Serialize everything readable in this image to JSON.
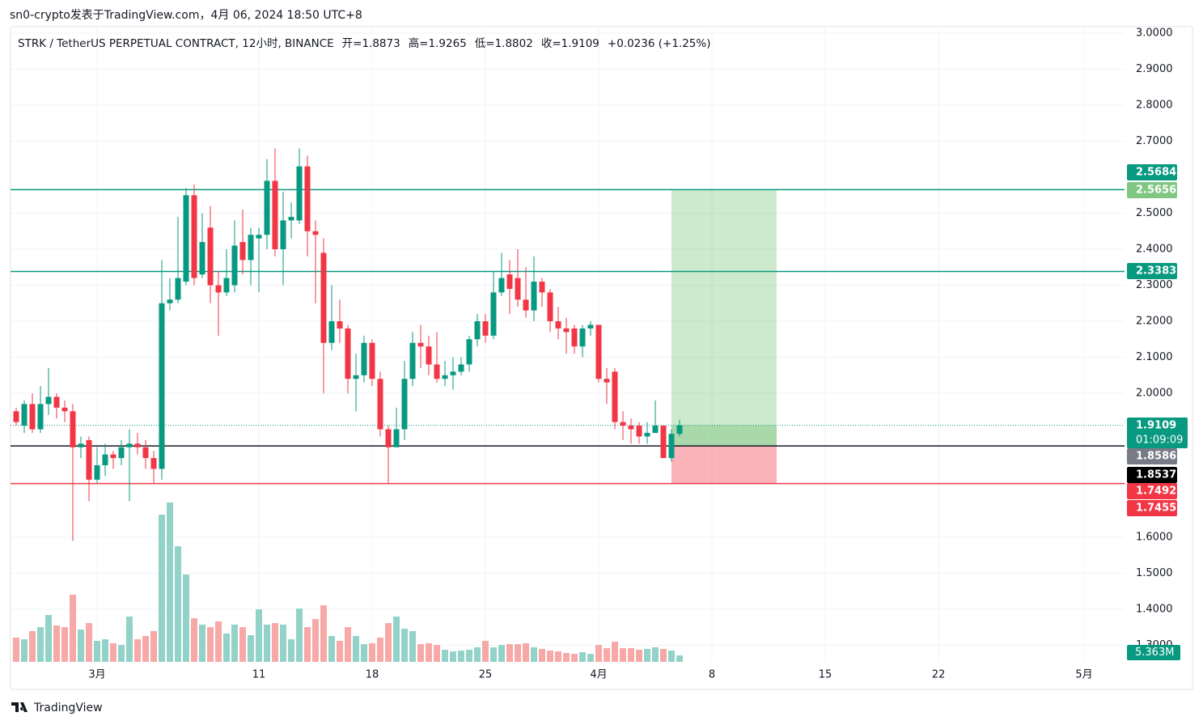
{
  "header": "sn0-crypto发表于TradingView.com，4月 06, 2024 18:50 UTC+8",
  "footer": "TradingView",
  "chart_data": {
    "type": "candlestick",
    "title": "STRK / TetherUS PERPETUAL CONTRACT, 12小时, BINANCE",
    "legend_values": [
      "开=1.8873",
      "高=1.9265",
      "低=1.8802",
      "收=1.9109",
      "+0.0236 (+1.25%)"
    ],
    "open": [
      1.95,
      1.91,
      1.97,
      1.9,
      1.97,
      1.99,
      1.96,
      1.95,
      1.85,
      1.87,
      1.76,
      1.8,
      1.83,
      1.82,
      1.85,
      1.86,
      1.85,
      1.82,
      1.79,
      2.25,
      2.26,
      2.31,
      2.55,
      2.33,
      2.46,
      2.3,
      2.28,
      2.3,
      2.42,
      2.37,
      2.43,
      2.44,
      2.59,
      2.4,
      2.48,
      2.48,
      2.63,
      2.45,
      2.39,
      2.14,
      2.2,
      2.18,
      2.04,
      2.05,
      2.14,
      2.04,
      1.9,
      1.85,
      1.9,
      2.04,
      2.14,
      2.13,
      2.08,
      2.04,
      2.05,
      2.06,
      2.08,
      2.15,
      2.2,
      2.16,
      2.28,
      2.33,
      2.32,
      2.26,
      2.23,
      2.31,
      2.28,
      2.2,
      2.18,
      2.18,
      2.13,
      2.18,
      2.19,
      2.04,
      2.06,
      1.92,
      1.91,
      1.91,
      1.88,
      1.89,
      1.91,
      1.82,
      1.8873
    ],
    "high": [
      1.96,
      1.98,
      2.0,
      2.02,
      2.07,
      2.0,
      1.98,
      1.97,
      1.88,
      1.88,
      1.85,
      1.86,
      1.84,
      1.87,
      1.9,
      1.89,
      1.87,
      1.84,
      2.37,
      2.32,
      2.49,
      2.57,
      2.58,
      2.5,
      2.52,
      2.34,
      2.4,
      2.48,
      2.51,
      2.46,
      2.46,
      2.65,
      2.68,
      2.56,
      2.53,
      2.68,
      2.66,
      2.48,
      2.43,
      2.3,
      2.26,
      2.19,
      2.11,
      2.16,
      2.15,
      2.06,
      1.91,
      1.96,
      2.09,
      2.17,
      2.19,
      2.16,
      2.17,
      2.09,
      2.1,
      2.1,
      2.16,
      2.22,
      2.22,
      2.34,
      2.39,
      2.37,
      2.4,
      2.35,
      2.38,
      2.32,
      2.29,
      2.24,
      2.21,
      2.19,
      2.19,
      2.2,
      2.19,
      2.07,
      2.07,
      1.95,
      1.93,
      1.92,
      1.92,
      1.98,
      1.91,
      1.9,
      1.9265
    ],
    "low": [
      1.91,
      1.89,
      1.89,
      1.89,
      1.94,
      1.93,
      1.92,
      1.59,
      1.82,
      1.7,
      1.75,
      1.77,
      1.79,
      1.8,
      1.7,
      1.83,
      1.79,
      1.75,
      1.76,
      2.23,
      2.25,
      2.3,
      2.3,
      2.32,
      2.25,
      2.16,
      2.27,
      2.28,
      2.33,
      2.3,
      2.28,
      2.4,
      2.38,
      2.3,
      2.43,
      2.47,
      2.38,
      2.25,
      2.0,
      2.12,
      2.14,
      2.0,
      1.95,
      2.03,
      2.02,
      1.88,
      1.75,
      1.85,
      1.87,
      2.02,
      2.07,
      2.05,
      2.03,
      2.02,
      2.01,
      2.05,
      2.06,
      2.13,
      2.14,
      2.15,
      2.27,
      2.22,
      2.24,
      2.21,
      2.2,
      2.24,
      2.17,
      2.15,
      2.11,
      2.11,
      2.1,
      2.16,
      2.03,
      1.97,
      1.9,
      1.87,
      1.86,
      1.86,
      1.86,
      1.89,
      1.82,
      1.81,
      1.8802
    ],
    "close": [
      1.92,
      1.97,
      1.9,
      1.97,
      1.99,
      1.96,
      1.95,
      1.85,
      1.86,
      1.76,
      1.8,
      1.83,
      1.82,
      1.85,
      1.86,
      1.85,
      1.82,
      1.79,
      2.25,
      2.26,
      2.32,
      2.55,
      2.32,
      2.42,
      2.3,
      2.28,
      2.32,
      2.41,
      2.37,
      2.44,
      2.44,
      2.59,
      2.4,
      2.48,
      2.49,
      2.63,
      2.45,
      2.44,
      2.14,
      2.2,
      2.18,
      2.04,
      2.05,
      2.14,
      2.04,
      1.9,
      1.85,
      1.9,
      2.04,
      2.14,
      2.13,
      2.08,
      2.04,
      2.05,
      2.06,
      2.08,
      2.15,
      2.2,
      2.16,
      2.28,
      2.32,
      2.29,
      2.26,
      2.23,
      2.31,
      2.28,
      2.2,
      2.18,
      2.17,
      2.13,
      2.18,
      2.19,
      2.04,
      2.03,
      1.92,
      1.91,
      1.9,
      1.88,
      1.89,
      1.91,
      1.82,
      1.8873,
      1.9109
    ],
    "volume": [
      20.2,
      18.8,
      25.6,
      28.9,
      39.0,
      30.3,
      28.9,
      55.9,
      26.9,
      32.3,
      17.5,
      18.8,
      15.5,
      14.1,
      37.7,
      18.8,
      21.5,
      25.6,
      122.5,
      132.6,
      96.2,
      72.7,
      36.3,
      31.0,
      28.9,
      33.7,
      23.6,
      31.0,
      28.9,
      22.2,
      43.7,
      31.0,
      32.3,
      31.0,
      18.8,
      44.4,
      28.9,
      35.7,
      47.1,
      21.5,
      17.5,
      28.9,
      21.5,
      14.8,
      15.5,
      20.2,
      32.3,
      37.7,
      27.6,
      25.6,
      14.8,
      15.5,
      14.1,
      10.1,
      8.7,
      9.4,
      10.1,
      12.1,
      17.5,
      12.1,
      14.1,
      14.8,
      14.8,
      15.5,
      12.1,
      10.8,
      9.4,
      8.7,
      7.4,
      6.7,
      8.1,
      6.7,
      14.1,
      11.4,
      16.8,
      11.4,
      11.4,
      10.1,
      10.8,
      12.1,
      10.8,
      9.4,
      5.363
    ],
    "volume_label": "5.363M",
    "volume_ylim": [
      0,
      140
    ],
    "up_color": "#089981",
    "down_color": "#f23645",
    "volume_up_color": "#92d2c8",
    "volume_down_color": "#f7a9a7",
    "xlim": [
      -0.7,
      137
    ],
    "xticks": [
      {
        "value": 10,
        "label": "3月"
      },
      {
        "value": 30,
        "label": "11"
      },
      {
        "value": 44,
        "label": "18"
      },
      {
        "value": 58,
        "label": "25"
      },
      {
        "value": 72,
        "label": "4月"
      },
      {
        "value": 86,
        "label": "8"
      },
      {
        "value": 100,
        "label": "15"
      },
      {
        "value": 114,
        "label": "22"
      },
      {
        "value": 132,
        "label": "5月"
      }
    ],
    "ylim": [
      1.254,
      3.018
    ],
    "yticks": [
      {
        "value": 3,
        "label": "3.0000"
      },
      {
        "value": 2.9,
        "label": "2.9000"
      },
      {
        "value": 2.8,
        "label": "2.8000"
      },
      {
        "value": 2.7,
        "label": "2.7000"
      },
      {
        "value": 2.5,
        "label": "2.5000"
      },
      {
        "value": 2.4,
        "label": "2.4000"
      },
      {
        "value": 2.3,
        "label": "2.3000"
      },
      {
        "value": 2.2,
        "label": "2.2000"
      },
      {
        "value": 2.1,
        "label": "2.1000"
      },
      {
        "value": 2,
        "label": "2.0000"
      },
      {
        "value": 1.6,
        "label": "1.6000"
      },
      {
        "value": 1.5,
        "label": "1.5000"
      },
      {
        "value": 1.4,
        "label": "1.4000"
      },
      {
        "value": 1.3,
        "label": "1.3000"
      }
    ],
    "grid": true,
    "lines": [
      {
        "value": 2.5656,
        "color": "#089981"
      },
      {
        "value": 2.3383,
        "color": "#089981"
      },
      {
        "value": 1.8537,
        "color": "#131722"
      },
      {
        "value": 1.7492,
        "color": "#f23645"
      }
    ],
    "position": {
      "start": 81,
      "end": 94,
      "entry": 1.8537,
      "target": 2.5656,
      "stop": 1.7492
    },
    "price_labels": [
      {
        "value": 2.5684,
        "color": "#089981"
      },
      {
        "value": 2.5656,
        "color": "#81c784"
      },
      {
        "value": 2.3383,
        "color": "#089981"
      },
      {
        "value": 1.9109,
        "color": "#089981",
        "countdown": "01:09:09"
      },
      {
        "value": 1.8586,
        "color": "#787b86"
      },
      {
        "value": 1.8537,
        "color": "#000000"
      },
      {
        "value": 1.7492,
        "color": "#f23645"
      },
      {
        "value": 1.7455,
        "color": "#f23645"
      }
    ]
  }
}
